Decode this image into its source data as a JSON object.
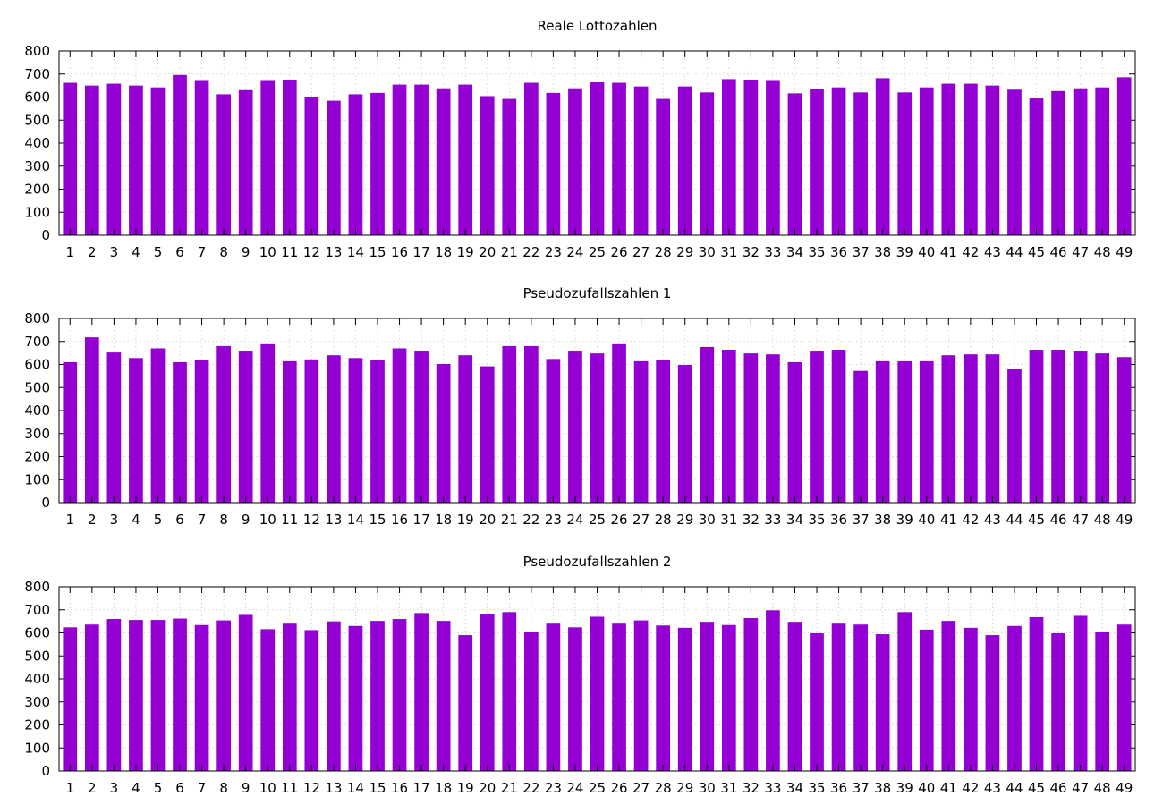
{
  "chart_data": [
    {
      "type": "bar",
      "title": "Reale Lottozahlen",
      "ylim": [
        0,
        800
      ],
      "yticks": [
        0,
        100,
        200,
        300,
        400,
        500,
        600,
        700,
        800
      ],
      "grid": true,
      "color": "#9400d3",
      "categories": [
        "1",
        "2",
        "3",
        "4",
        "5",
        "6",
        "7",
        "8",
        "9",
        "10",
        "11",
        "12",
        "13",
        "14",
        "15",
        "16",
        "17",
        "18",
        "19",
        "20",
        "21",
        "22",
        "23",
        "24",
        "25",
        "26",
        "27",
        "28",
        "29",
        "30",
        "31",
        "32",
        "33",
        "34",
        "35",
        "36",
        "37",
        "38",
        "39",
        "40",
        "41",
        "42",
        "43",
        "44",
        "45",
        "46",
        "47",
        "48",
        "49"
      ],
      "values": [
        662,
        650,
        658,
        650,
        642,
        696,
        670,
        612,
        630,
        670,
        672,
        600,
        584,
        612,
        618,
        654,
        654,
        638,
        654,
        604,
        592,
        662,
        618,
        638,
        664,
        662,
        646,
        592,
        646,
        620,
        678,
        672,
        670,
        616,
        634,
        642,
        620,
        682,
        620,
        642,
        658,
        658,
        650,
        632,
        594,
        626,
        638,
        642,
        686
      ]
    },
    {
      "type": "bar",
      "title": "Pseudozufallszahlen 1",
      "ylim": [
        0,
        800
      ],
      "yticks": [
        0,
        100,
        200,
        300,
        400,
        500,
        600,
        700,
        800
      ],
      "grid": true,
      "color": "#9400d3",
      "categories": [
        "1",
        "2",
        "3",
        "4",
        "5",
        "6",
        "7",
        "8",
        "9",
        "10",
        "11",
        "12",
        "13",
        "14",
        "15",
        "16",
        "17",
        "18",
        "19",
        "20",
        "21",
        "22",
        "23",
        "24",
        "25",
        "26",
        "27",
        "28",
        "29",
        "30",
        "31",
        "32",
        "33",
        "34",
        "35",
        "36",
        "37",
        "38",
        "39",
        "40",
        "41",
        "42",
        "43",
        "44",
        "45",
        "46",
        "47",
        "48",
        "49"
      ],
      "values": [
        610,
        718,
        652,
        628,
        670,
        610,
        618,
        680,
        660,
        688,
        614,
        622,
        640,
        628,
        618,
        670,
        660,
        602,
        640,
        592,
        680,
        680,
        624,
        660,
        648,
        688,
        614,
        620,
        598,
        676,
        664,
        648,
        644,
        610,
        660,
        664,
        572,
        614,
        614,
        614,
        640,
        644,
        644,
        582,
        664,
        664,
        660,
        648,
        632
      ]
    },
    {
      "type": "bar",
      "title": "Pseudozufallszahlen 2",
      "ylim": [
        0,
        800
      ],
      "yticks": [
        0,
        100,
        200,
        300,
        400,
        500,
        600,
        700,
        800
      ],
      "grid": true,
      "color": "#9400d3",
      "categories": [
        "1",
        "2",
        "3",
        "4",
        "5",
        "6",
        "7",
        "8",
        "9",
        "10",
        "11",
        "12",
        "13",
        "14",
        "15",
        "16",
        "17",
        "18",
        "19",
        "20",
        "21",
        "22",
        "23",
        "24",
        "25",
        "26",
        "27",
        "28",
        "29",
        "30",
        "31",
        "32",
        "33",
        "34",
        "35",
        "36",
        "37",
        "38",
        "39",
        "40",
        "41",
        "42",
        "43",
        "44",
        "45",
        "46",
        "47",
        "48",
        "49"
      ],
      "values": [
        624,
        636,
        660,
        656,
        656,
        662,
        634,
        654,
        678,
        616,
        640,
        612,
        650,
        630,
        652,
        660,
        686,
        652,
        590,
        680,
        690,
        602,
        640,
        624,
        670,
        640,
        654,
        632,
        622,
        648,
        634,
        664,
        698,
        648,
        598,
        640,
        636,
        594,
        690,
        614,
        652,
        622,
        590,
        630,
        668,
        598,
        674,
        602,
        636
      ]
    }
  ]
}
